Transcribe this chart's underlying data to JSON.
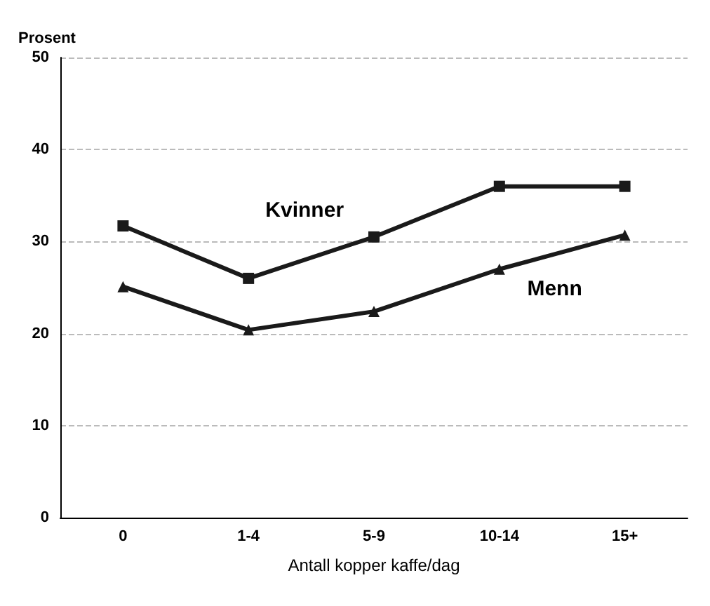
{
  "chart_data": {
    "type": "line",
    "ylabel": "Prosent",
    "xlabel": "Antall kopper kaffe/dag",
    "categories": [
      "0",
      "1-4",
      "5-9",
      "10-14",
      "15+"
    ],
    "series": [
      {
        "name": "Kvinner",
        "color": "#1a1a1a",
        "marker": "square",
        "values": [
          31.7,
          26,
          30.5,
          36,
          36
        ]
      },
      {
        "name": "Menn",
        "color": "#1a1a1a",
        "marker": "triangle",
        "values": [
          25.1,
          20.4,
          22.4,
          27,
          30.7
        ]
      }
    ],
    "ylim": [
      0,
      50
    ],
    "yticks": [
      0,
      10,
      20,
      30,
      40,
      50
    ],
    "grid": "y",
    "legend": false,
    "line_style": "solid"
  }
}
